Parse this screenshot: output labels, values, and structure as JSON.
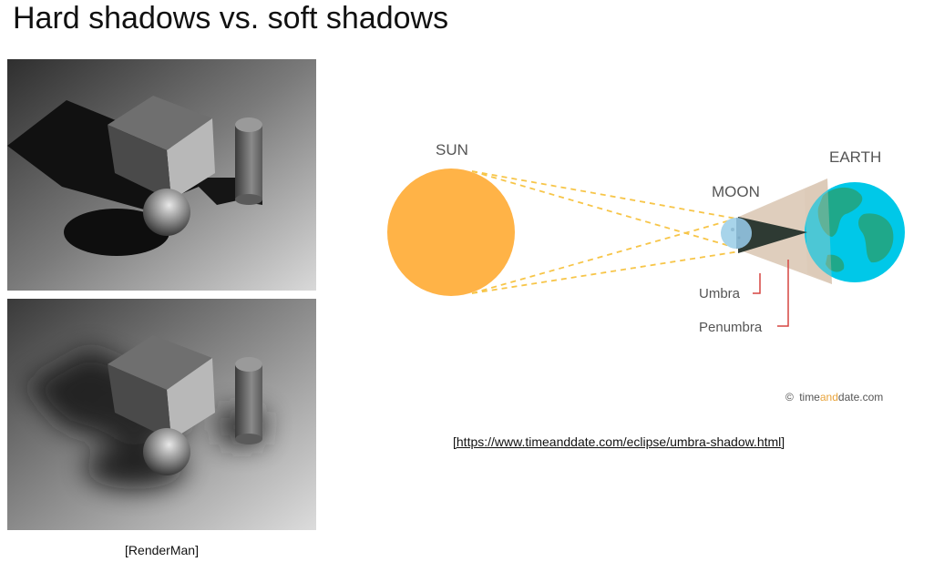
{
  "slide": {
    "title": "Hard shadows vs. soft shadows",
    "left_caption": "[RenderMan]",
    "right_caption": "[https://www.timeanddate.com/eclipse/umbra-shadow.html]"
  },
  "diagram": {
    "labels": {
      "sun": "SUN",
      "moon": "MOON",
      "earth": "EARTH",
      "umbra": "Umbra",
      "penumbra": "Penumbra"
    },
    "credit": {
      "symbol": "©",
      "part1": "time",
      "part2": "and",
      "part3": "date.com"
    },
    "colors": {
      "sun": "#FFB347",
      "earth_ocean": "#00C8E8",
      "earth_land": "#1FA88A",
      "moon": "#A8D4EA",
      "penumbra": "#D9C6B2",
      "umbra": "#2E3A33",
      "rays": "#F7C548",
      "pointer": "#D64541",
      "credit_accent": "#E8A33A"
    }
  }
}
